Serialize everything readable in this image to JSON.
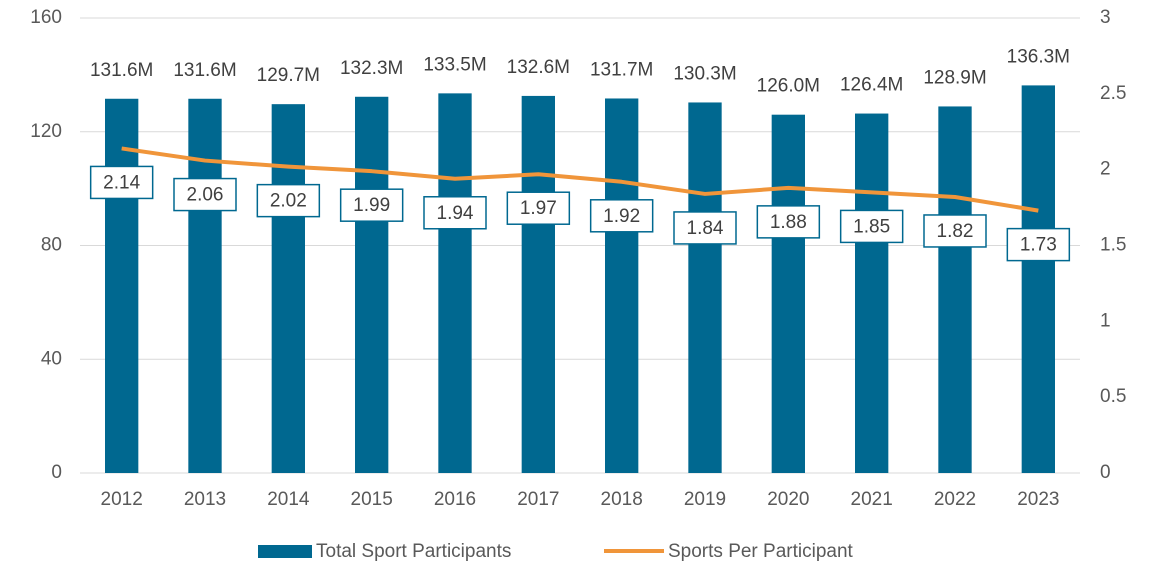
{
  "chart_data": {
    "type": "combo",
    "categories": [
      "2012",
      "2013",
      "2014",
      "2015",
      "2016",
      "2017",
      "2018",
      "2019",
      "2020",
      "2021",
      "2022",
      "2023"
    ],
    "series": [
      {
        "name": "Total Sport Participants",
        "type": "bar",
        "color": "#006890",
        "values": [
          131.6,
          131.6,
          129.7,
          132.3,
          133.5,
          132.6,
          131.7,
          130.3,
          126.0,
          126.4,
          128.9,
          136.3
        ],
        "value_labels": [
          "131.6M",
          "131.6M",
          "129.7M",
          "132.3M",
          "133.5M",
          "132.6M",
          "131.7M",
          "130.3M",
          "126.0M",
          "126.4M",
          "128.9M",
          "136.3M"
        ]
      },
      {
        "name": "Sports Per Participant",
        "type": "line",
        "axis": "y2",
        "color": "#f0953a",
        "values": [
          2.14,
          2.06,
          2.02,
          1.99,
          1.94,
          1.97,
          1.92,
          1.84,
          1.88,
          1.85,
          1.82,
          1.73
        ]
      }
    ],
    "ylim": [
      0,
      160
    ],
    "yticks": [
      0,
      40,
      80,
      120,
      160
    ],
    "y2lim": [
      0,
      3
    ],
    "y2ticks": [
      0,
      0.5,
      1,
      1.5,
      2,
      2.5,
      3
    ],
    "grid": true,
    "legend": "bottom"
  }
}
